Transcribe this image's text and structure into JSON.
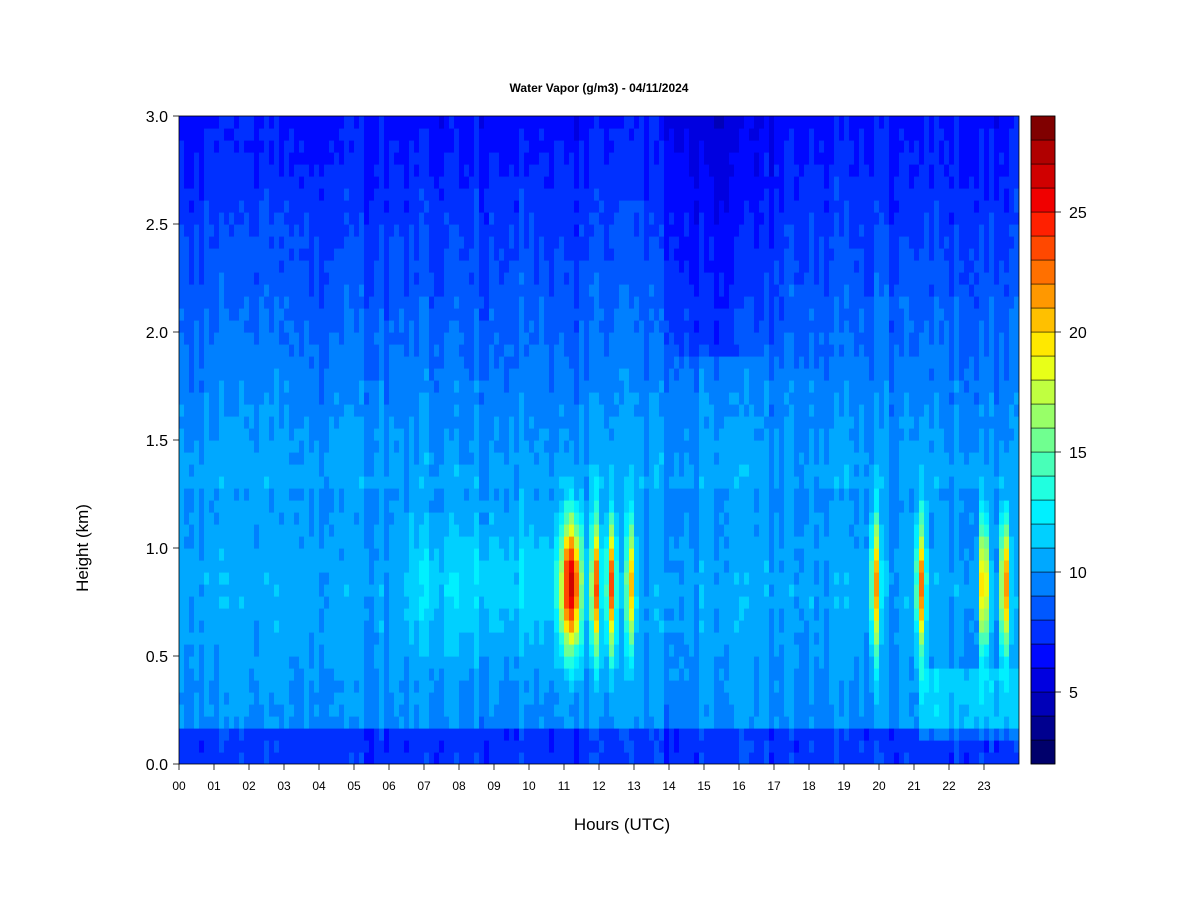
{
  "chart_data": {
    "type": "heatmap",
    "title": "Water Vapor (g/m3) - 04/11/2024",
    "xlabel": "Hours (UTC)",
    "ylabel": "Height (km)",
    "xlim": [
      0,
      24
    ],
    "ylim": [
      0.0,
      3.0
    ],
    "x_ticks": [
      "00",
      "01",
      "02",
      "03",
      "04",
      "05",
      "06",
      "07",
      "08",
      "09",
      "10",
      "11",
      "12",
      "13",
      "14",
      "15",
      "16",
      "17",
      "18",
      "19",
      "20",
      "21",
      "22",
      "23"
    ],
    "y_ticks": [
      "0.0",
      "0.5",
      "1.0",
      "1.5",
      "2.0",
      "2.5",
      "3.0"
    ],
    "colorbar": {
      "min": 2,
      "max": 29,
      "levels": [
        2,
        3,
        4,
        5,
        6,
        7,
        8,
        9,
        10,
        11,
        12,
        13,
        14,
        15,
        16,
        17,
        18,
        19,
        20,
        21,
        22,
        23,
        24,
        25,
        26,
        27,
        28,
        29
      ],
      "ticks": [
        "5",
        "10",
        "15",
        "20",
        "25"
      ],
      "colors": [
        "#00006b",
        "#00008f",
        "#0000b8",
        "#0000e0",
        "#0008ff",
        "#0030ff",
        "#0058ff",
        "#0080ff",
        "#00a8ff",
        "#00d0ff",
        "#00f0ff",
        "#20ffe0",
        "#48ffb8",
        "#70ff90",
        "#98ff68",
        "#c0ff40",
        "#e8ff18",
        "#ffe800",
        "#ffc000",
        "#ff9800",
        "#ff7000",
        "#ff4800",
        "#ff2000",
        "#f00000",
        "#d00000",
        "#b00000",
        "#800000"
      ]
    },
    "moisture_events": [
      {
        "hour": 11.2,
        "peak": 28
      },
      {
        "hour": 11.9,
        "peak": 24
      },
      {
        "hour": 12.35,
        "peak": 24
      },
      {
        "hour": 12.9,
        "peak": 21
      },
      {
        "hour": 19.9,
        "peak": 22
      },
      {
        "hour": 21.2,
        "peak": 23
      },
      {
        "hour": 23.0,
        "peak": 23
      },
      {
        "hour": 23.6,
        "peak": 24
      }
    ]
  }
}
